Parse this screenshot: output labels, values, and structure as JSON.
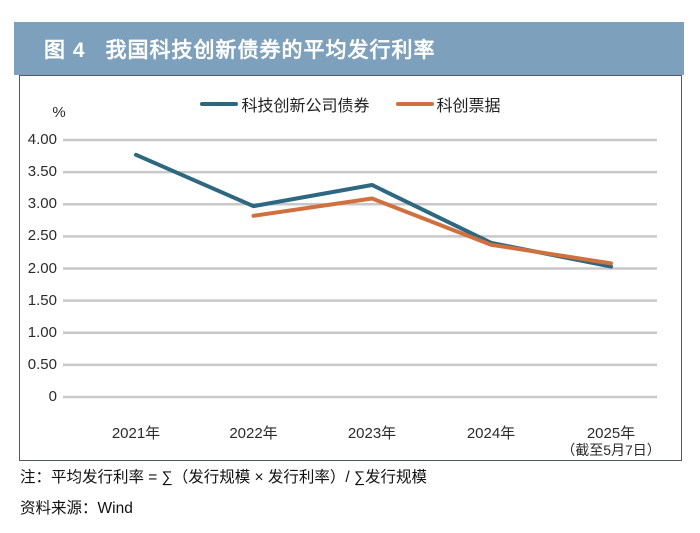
{
  "header": {
    "figure_label": "图 4",
    "title": "我国科技创新债券的平均发行利率",
    "bg_color": "#7da0bc"
  },
  "chart_data": {
    "type": "line",
    "unit_label": "%",
    "categories": [
      "2021年",
      "2022年",
      "2023年",
      "2024年",
      "2025年"
    ],
    "last_category_note": "（截至5月7日）",
    "series": [
      {
        "name": "科技创新公司债券",
        "color": "#2e6880",
        "values": [
          3.77,
          2.97,
          3.3,
          2.4,
          2.03
        ]
      },
      {
        "name": "科创票据",
        "color": "#d0703f",
        "values": [
          null,
          2.82,
          3.09,
          2.37,
          2.08
        ]
      }
    ],
    "y_ticks": [
      "4.00",
      "3.50",
      "3.00",
      "2.50",
      "2.00",
      "1.50",
      "1.00",
      "0.50",
      "0"
    ],
    "ylim": [
      0,
      4.0
    ],
    "grid": true,
    "grid_color": "#c8c8c8",
    "legend_position": "top-center"
  },
  "notes": {
    "note": "注：平均发行利率 = ∑（发行规模 × 发行利率）/ ∑发行规模",
    "source": "资料来源：Wind"
  }
}
